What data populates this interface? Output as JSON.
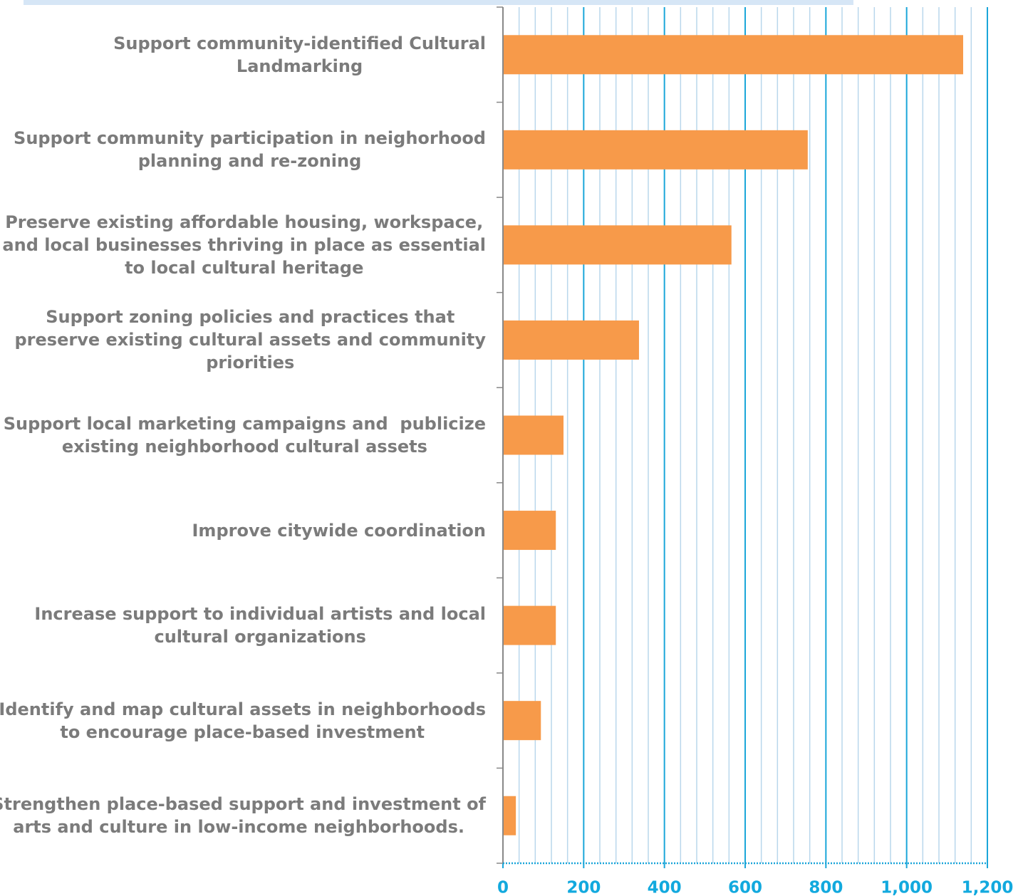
{
  "chart_data": {
    "type": "barh",
    "categories": [
      "Support community-identified Cultural\nLandmarking",
      "Support community participation in neighorhood\nplanning and re-zoning",
      "Preserve existing affordable housing, workspace,\nand local businesses thriving in place as essential\nto local cultural heritage",
      "Support zoning policies and practices that\npreserve existing cultural assets and community\npriorities",
      "Support local marketing campaigns and  publicize\nexisting neighborhood cultural assets",
      "Improve citywide coordination",
      "Increase support to individual artists and local\ncultural organizations",
      "Identify and map cultural assets in neighborhoods\nto encourage place-based investment",
      "Strengthen place-based support and investment of\narts and culture in low-income neighborhoods."
    ],
    "values": [
      1140,
      755,
      566,
      337,
      150,
      131,
      131,
      94,
      32
    ],
    "color": "#f79a4a",
    "xlim": [
      0,
      1200
    ],
    "xticks": [
      0,
      200,
      400,
      600,
      800,
      {
        "value": 1000,
        "label": "1,000"
      },
      {
        "value": 1200,
        "label": "1,200"
      }
    ],
    "xminorticks": [
      40,
      80,
      120,
      160,
      240,
      280,
      320,
      360,
      440,
      480,
      520,
      560,
      640,
      680,
      720,
      760,
      840,
      880,
      920,
      960,
      1040,
      1080,
      1120,
      1160
    ],
    "grid": true
  }
}
